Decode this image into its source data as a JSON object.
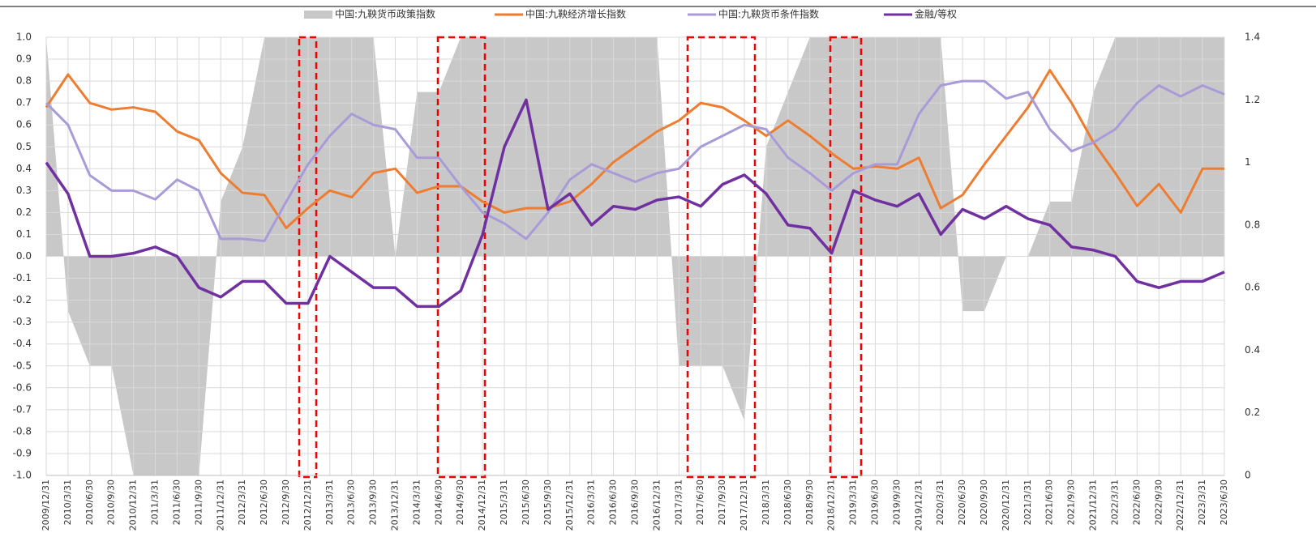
{
  "chart_data": {
    "type": "line",
    "categories": [
      "2009/12/31",
      "2010/3/31",
      "2010/6/30",
      "2010/9/30",
      "2010/12/31",
      "2011/3/31",
      "2011/6/30",
      "2011/9/30",
      "2011/12/31",
      "2012/3/31",
      "2012/6/30",
      "2012/9/30",
      "2012/12/31",
      "2013/3/31",
      "2013/6/30",
      "2013/9/30",
      "2013/12/31",
      "2014/3/31",
      "2014/6/30",
      "2014/9/30",
      "2014/12/31",
      "2015/3/31",
      "2015/6/30",
      "2015/9/30",
      "2015/12/31",
      "2016/3/31",
      "2016/6/30",
      "2016/9/30",
      "2016/12/31",
      "2017/3/31",
      "2017/6/30",
      "2017/9/30",
      "2017/12/31",
      "2018/3/31",
      "2018/6/30",
      "2018/9/30",
      "2018/12/31",
      "2019/3/31",
      "2019/6/30",
      "2019/9/30",
      "2019/12/31",
      "2020/3/31",
      "2020/6/30",
      "2020/9/30",
      "2020/12/31",
      "2021/3/31",
      "2021/6/30",
      "2021/9/30",
      "2021/12/31",
      "2022/3/31",
      "2022/6/30",
      "2022/9/30",
      "2022/12/31",
      "2023/3/31",
      "2023/6/30"
    ],
    "series": [
      {
        "name": "中国:九鞅货币政策指数",
        "type": "area",
        "color": "#c8c8c8",
        "values": [
          1.0,
          -0.25,
          -0.5,
          -0.5,
          -1.0,
          -1.0,
          -1.0,
          -1.0,
          0.25,
          0.5,
          1.0,
          1.0,
          1.0,
          1.0,
          1.0,
          1.0,
          0,
          0.75,
          0.75,
          1.0,
          1.0,
          1.0,
          1.0,
          1.0,
          1.0,
          1.0,
          1.0,
          1.0,
          1.0,
          -0.5,
          -0.5,
          -0.5,
          -0.75,
          0.5,
          0.75,
          1.0,
          1.0,
          1.0,
          1.0,
          1.0,
          1.0,
          1.0,
          -0.25,
          -0.25,
          0,
          0,
          0.25,
          0.25,
          0.75,
          1.0,
          1.0,
          1.0,
          1.0,
          1.0,
          1.0
        ]
      },
      {
        "name": "中国:九鞅经济增长指数",
        "type": "line",
        "color": "#ed7d31",
        "values": [
          0.68,
          0.83,
          0.7,
          0.67,
          0.68,
          0.66,
          0.57,
          0.53,
          0.38,
          0.29,
          0.28,
          0.13,
          0.22,
          0.3,
          0.27,
          0.38,
          0.4,
          0.29,
          0.32,
          0.32,
          0.25,
          0.2,
          0.22,
          0.22,
          0.25,
          0.33,
          0.43,
          0.5,
          0.57,
          0.62,
          0.7,
          0.68,
          0.62,
          0.55,
          0.62,
          0.55,
          0.47,
          0.4,
          0.41,
          0.4,
          0.45,
          0.22,
          0.28,
          0.42,
          0.55,
          0.68,
          0.85,
          0.7,
          0.52,
          0.38,
          0.23,
          0.33,
          0.2,
          0.4,
          0.4
        ]
      },
      {
        "name": "中国:九鞅货币条件指数",
        "type": "line",
        "color": "#a99bd8",
        "values": [
          0.7,
          0.6,
          0.37,
          0.3,
          0.3,
          0.26,
          0.35,
          0.3,
          0.08,
          0.08,
          0.07,
          0.25,
          0.42,
          0.55,
          0.65,
          0.6,
          0.58,
          0.45,
          0.45,
          0.32,
          0.2,
          0.15,
          0.08,
          0.2,
          0.35,
          0.42,
          0.38,
          0.34,
          0.38,
          0.4,
          0.5,
          0.55,
          0.6,
          0.58,
          0.45,
          0.38,
          0.3,
          0.38,
          0.42,
          0.42,
          0.65,
          0.78,
          0.8,
          0.8,
          0.72,
          0.75,
          0.58,
          0.48,
          0.52,
          0.58,
          0.7,
          0.78,
          0.73,
          0.78,
          0.74
        ]
      },
      {
        "name": "金融/等权",
        "type": "line",
        "color": "#7030a0",
        "axis": "y2",
        "values": [
          1.0,
          0.9,
          0.7,
          0.7,
          0.71,
          0.73,
          0.7,
          0.6,
          0.57,
          0.62,
          0.62,
          0.55,
          0.55,
          0.7,
          0.65,
          0.6,
          0.6,
          0.54,
          0.54,
          0.59,
          0.77,
          1.05,
          1.2,
          0.85,
          0.9,
          0.8,
          0.86,
          0.85,
          0.88,
          0.89,
          0.86,
          0.93,
          0.96,
          0.9,
          0.8,
          0.79,
          0.71,
          0.91,
          0.88,
          0.86,
          0.9,
          0.77,
          0.85,
          0.82,
          0.86,
          0.82,
          0.8,
          0.73,
          0.72,
          0.7,
          0.62,
          0.6,
          0.62,
          0.62,
          0.65
        ]
      }
    ],
    "ylim": [
      -1,
      1
    ],
    "yticks": [
      {
        "value": -1,
        "label": "-1.0"
      },
      -0.9,
      -0.8,
      -0.7,
      -0.6,
      -0.5,
      -0.4,
      -0.3,
      -0.2,
      -0.1,
      {
        "value": 0,
        "label": "0.0"
      },
      0.1,
      0.2,
      0.3,
      0.4,
      0.5,
      0.6,
      0.7,
      0.8,
      0.9,
      {
        "value": 1,
        "label": "1.0"
      }
    ],
    "y2lim": [
      0,
      1.4
    ],
    "y2ticks": [
      0,
      0.2,
      0.4,
      0.6,
      0.8,
      1,
      1.2,
      1.4
    ],
    "grid": true,
    "legend": "top"
  }
}
